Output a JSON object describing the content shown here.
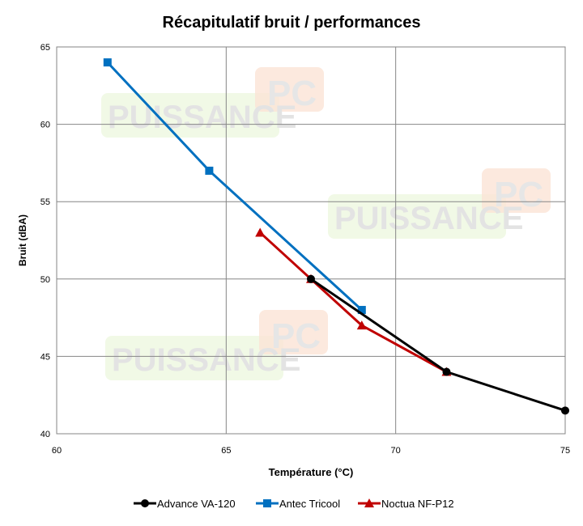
{
  "chart_data": {
    "type": "line",
    "title": "Récapitulatif bruit / performances",
    "xlabel": "Température (°C)",
    "ylabel": "Bruit (dBA)",
    "xlim": [
      60,
      75
    ],
    "ylim": [
      40,
      65
    ],
    "xticks": [
      60,
      65,
      70,
      75
    ],
    "yticks": [
      40,
      45,
      50,
      55,
      60,
      65
    ],
    "grid": true,
    "legend": "bottom",
    "series": [
      {
        "name": "Advance VA-120",
        "color": "#000000",
        "marker": "circle",
        "x": [
          67.5,
          71.5,
          75
        ],
        "y": [
          50,
          44,
          41.5
        ]
      },
      {
        "name": "Antec Tricool",
        "color": "#0070c0",
        "marker": "square",
        "x": [
          61.5,
          64.5,
          69
        ],
        "y": [
          64,
          57,
          48
        ]
      },
      {
        "name": "Noctua NF-P12",
        "color": "#c00000",
        "marker": "triangle",
        "x": [
          66,
          67.5,
          69,
          71.5
        ],
        "y": [
          53,
          50,
          47,
          44
        ]
      }
    ]
  },
  "watermark": {
    "text1": "PUISSANCE",
    "text2": "PC"
  }
}
